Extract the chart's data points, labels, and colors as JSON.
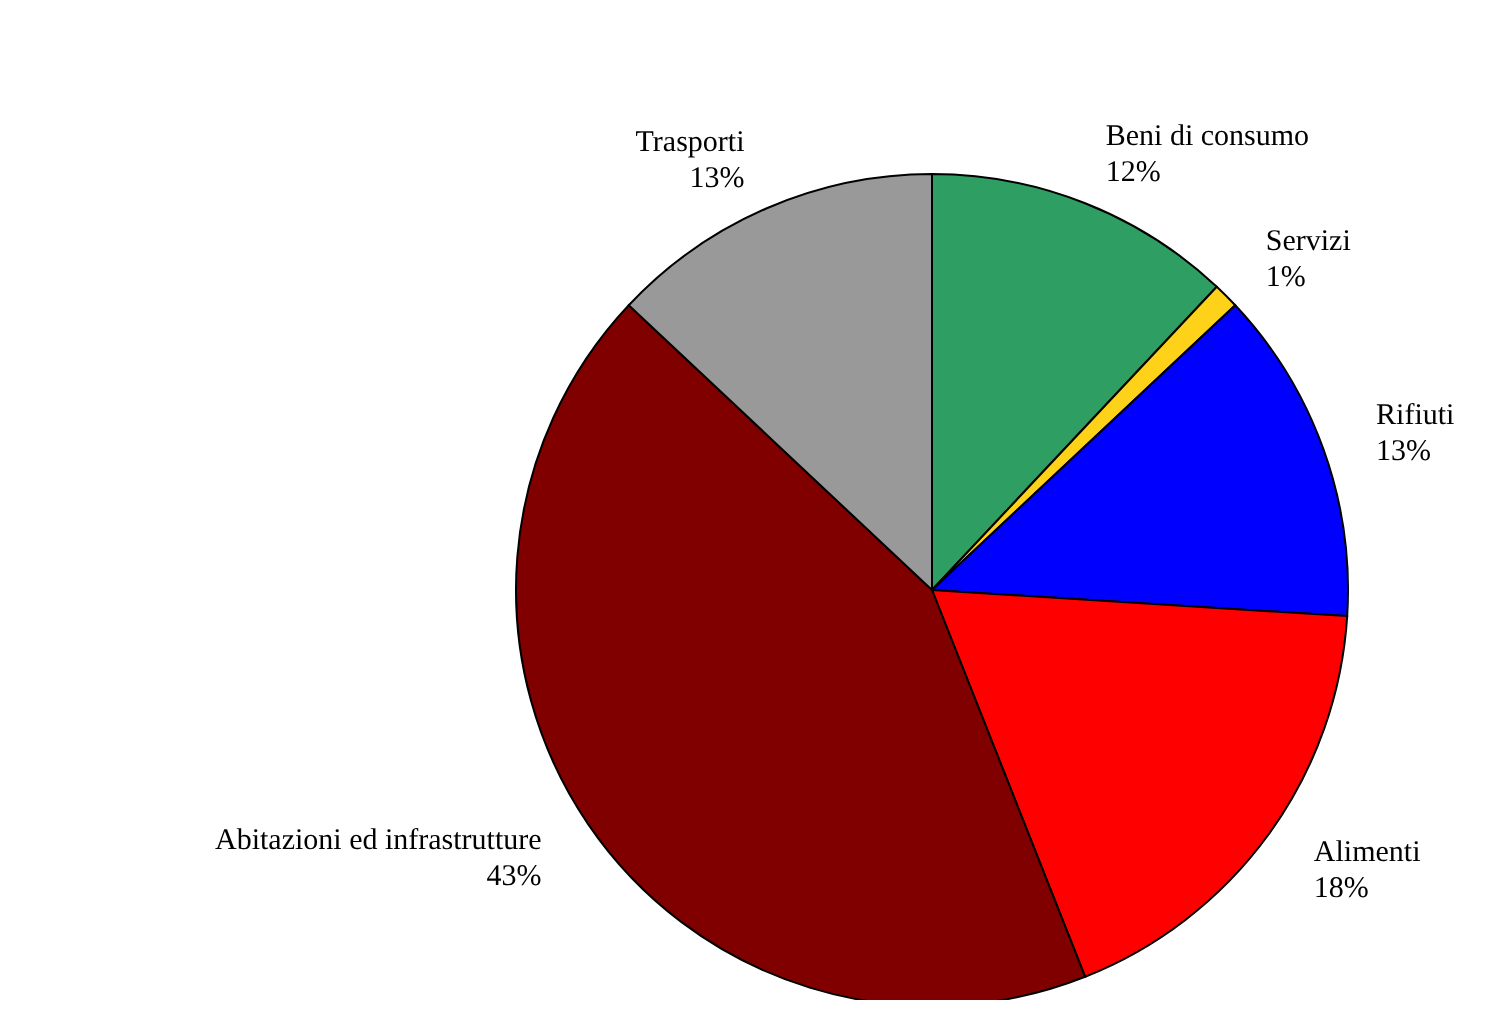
{
  "chart_data": {
    "type": "pie",
    "categories": [
      "Beni di consumo",
      "Servizi",
      "Rifiuti",
      "Alimenti",
      "Abitazioni ed infrastrutture",
      "Trasporti"
    ],
    "values": [
      12,
      1,
      13,
      18,
      43,
      13
    ],
    "colors": [
      "#2e9e62",
      "#ffd21a",
      "#0000ff",
      "#ff0000",
      "#800000",
      "#999999"
    ],
    "value_labels": [
      "12%",
      "1%",
      "13%",
      "18%",
      "43%",
      "13%"
    ],
    "legend": false
  }
}
